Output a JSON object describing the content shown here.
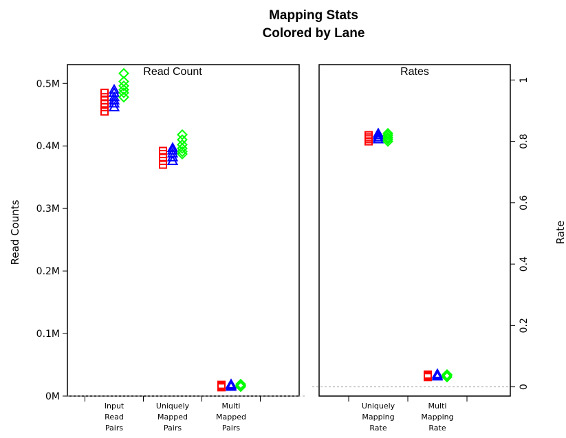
{
  "chart_data": {
    "type": "scatter",
    "title": "Mapping Stats",
    "subtitle": "Colored by Lane",
    "series": [
      {
        "color": "#ff0000",
        "marker": "square"
      },
      {
        "color": "#0000ff",
        "marker": "triangle"
      },
      {
        "color": "#00ff00",
        "marker": "diamond"
      }
    ],
    "panels": [
      {
        "title": "Read Count",
        "ylabel": "Read Counts",
        "ylim": [
          0,
          0.53
        ],
        "yticks": [
          {
            "value": 0,
            "label": "0M"
          },
          {
            "value": 0.1,
            "label": "0.1M"
          },
          {
            "value": 0.2,
            "label": "0.2M"
          },
          {
            "value": 0.3,
            "label": "0.3M"
          },
          {
            "value": 0.4,
            "label": "0.4M"
          },
          {
            "value": 0.5,
            "label": "0.5M"
          }
        ],
        "categories": [
          [
            "Input",
            "Read",
            "Pairs"
          ],
          [
            "Uniquely",
            "Mapped",
            "Pairs"
          ],
          [
            "Multi",
            "Mapped",
            "Pairs"
          ]
        ],
        "values": [
          [
            [
              0.455,
              0.462,
              0.468,
              0.473,
              0.478,
              0.485
            ],
            [
              0.462,
              0.468,
              0.473,
              0.478,
              0.485,
              0.49
            ],
            [
              0.478,
              0.485,
              0.49,
              0.496,
              0.503,
              0.516
            ]
          ],
          [
            [
              0.37,
              0.376,
              0.382,
              0.387,
              0.392
            ],
            [
              0.376,
              0.382,
              0.388,
              0.393,
              0.397
            ],
            [
              0.387,
              0.391,
              0.396,
              0.402,
              0.41,
              0.418
            ]
          ],
          [
            [
              0.014,
              0.016,
              0.018
            ],
            [
              0.015,
              0.017,
              0.019
            ],
            [
              0.015,
              0.017,
              0.019
            ]
          ]
        ]
      },
      {
        "title": "Rates",
        "ylabel": "Rate",
        "ylim": [
          -0.03,
          1.05
        ],
        "yticks": [
          {
            "value": 0,
            "label": "0"
          },
          {
            "value": 0.2,
            "label": "0.2"
          },
          {
            "value": 0.4,
            "label": "0.4"
          },
          {
            "value": 0.6,
            "label": "0.6"
          },
          {
            "value": 0.8,
            "label": "0.8"
          },
          {
            "value": 1,
            "label": "1"
          }
        ],
        "categories": [
          [
            "Uniquely",
            "Mapping",
            "Rate"
          ],
          [
            "Multi",
            "Mapping",
            "Rate"
          ]
        ],
        "values": [
          [
            [
              0.8,
              0.807,
              0.813,
              0.82
            ],
            [
              0.807,
              0.813,
              0.82,
              0.826
            ],
            [
              0.8,
              0.807,
              0.813,
              0.82,
              0.826
            ]
          ],
          [
            [
              0.032,
              0.036,
              0.04
            ],
            [
              0.034,
              0.038,
              0.042
            ],
            [
              0.032,
              0.036,
              0.04
            ]
          ]
        ]
      }
    ]
  }
}
